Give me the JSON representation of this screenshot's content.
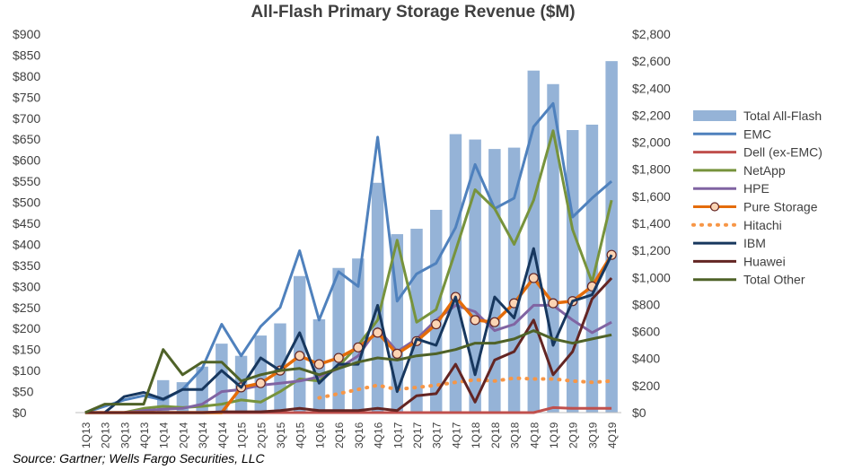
{
  "chart_data": {
    "type": "bar",
    "title": "All-Flash Primary Storage Revenue ($M)",
    "source": "Source: Gartner; Wells Fargo Securities, LLC",
    "categories": [
      "1Q13",
      "2Q13",
      "3Q13",
      "4Q13",
      "1Q14",
      "2Q14",
      "3Q14",
      "4Q14",
      "1Q15",
      "2Q15",
      "3Q15",
      "4Q15",
      "1Q16",
      "2Q16",
      "3Q16",
      "4Q16",
      "1Q17",
      "2Q17",
      "3Q17",
      "4Q17",
      "1Q18",
      "2Q18",
      "3Q18",
      "4Q18",
      "1Q19",
      "2Q19",
      "3Q19",
      "4Q19"
    ],
    "y_left": {
      "min": 0,
      "max": 900,
      "step": 50,
      "tick_labels": [
        "$0",
        "$50",
        "$100",
        "$150",
        "$200",
        "$250",
        "$300",
        "$350",
        "$400",
        "$450",
        "$500",
        "$550",
        "$600",
        "$650",
        "$700",
        "$750",
        "$800",
        "$850",
        "$900"
      ]
    },
    "y_right": {
      "min": 0,
      "max": 2800,
      "step": 200,
      "tick_labels": [
        "$0",
        "$200",
        "$400",
        "$600",
        "$800",
        "$1,000",
        "$1,200",
        "$1,400",
        "$1,600",
        "$1,800",
        "$2,000",
        "$2,200",
        "$2,400",
        "$2,600",
        "$2,800"
      ]
    },
    "legend_position": "right",
    "grid": false,
    "bar_series": {
      "name": "Total All-Flash",
      "axis": "right",
      "color": "#95b3d7",
      "values": [
        0,
        0,
        0,
        0,
        240,
        225,
        340,
        510,
        420,
        570,
        660,
        1010,
        690,
        1070,
        1140,
        1700,
        1320,
        1360,
        1500,
        2060,
        2020,
        1950,
        1960,
        2530,
        2430,
        2090,
        2130,
        2600
      ]
    },
    "series": [
      {
        "name": "EMC",
        "color": "#4f81bd",
        "style": "line",
        "values": [
          0,
          15,
          30,
          40,
          30,
          55,
          105,
          210,
          135,
          205,
          250,
          385,
          220,
          335,
          300,
          655,
          265,
          330,
          355,
          440,
          590,
          485,
          510,
          680,
          735,
          465,
          510,
          550
        ]
      },
      {
        "name": "Dell (ex-EMC)",
        "color": "#c0504d",
        "style": "line",
        "values": [
          0,
          0,
          0,
          0,
          0,
          0,
          0,
          0,
          0,
          0,
          0,
          0,
          0,
          0,
          0,
          0,
          0,
          0,
          0,
          0,
          0,
          0,
          0,
          0,
          12,
          10,
          10,
          10
        ]
      },
      {
        "name": "NetApp",
        "color": "#77933c",
        "style": "line",
        "values": [
          0,
          0,
          0,
          10,
          15,
          12,
          15,
          20,
          30,
          25,
          50,
          80,
          75,
          110,
          160,
          220,
          410,
          215,
          245,
          385,
          530,
          485,
          400,
          505,
          670,
          435,
          310,
          505
        ]
      },
      {
        "name": "HPE",
        "color": "#8064a2",
        "style": "line",
        "values": [
          0,
          0,
          0,
          5,
          8,
          10,
          20,
          50,
          55,
          65,
          70,
          75,
          85,
          105,
          135,
          200,
          145,
          175,
          220,
          255,
          240,
          195,
          210,
          255,
          255,
          220,
          190,
          215
        ]
      },
      {
        "name": "Pure Storage",
        "color": "#e46c0a",
        "style": "markerline",
        "values": [
          0,
          0,
          0,
          0,
          0,
          0,
          0,
          0,
          60,
          70,
          100,
          135,
          115,
          130,
          155,
          190,
          140,
          170,
          210,
          275,
          220,
          215,
          260,
          320,
          260,
          265,
          300,
          375
        ]
      },
      {
        "name": "Hitachi",
        "color": "#f79646",
        "style": "dotted",
        "values": [
          0,
          0,
          0,
          0,
          0,
          0,
          0,
          0,
          0,
          0,
          0,
          0,
          35,
          45,
          55,
          65,
          55,
          60,
          65,
          72,
          78,
          75,
          82,
          80,
          80,
          75,
          72,
          75
        ]
      },
      {
        "name": "IBM",
        "color": "#17375e",
        "style": "line",
        "values": [
          0,
          0,
          38,
          48,
          32,
          55,
          55,
          100,
          60,
          130,
          100,
          190,
          70,
          115,
          115,
          255,
          50,
          175,
          160,
          275,
          90,
          275,
          225,
          390,
          160,
          265,
          280,
          375
        ]
      },
      {
        "name": "Huawei",
        "color": "#632523",
        "style": "line",
        "values": [
          0,
          0,
          0,
          0,
          0,
          0,
          0,
          2,
          2,
          2,
          5,
          10,
          5,
          5,
          5,
          10,
          5,
          40,
          45,
          115,
          25,
          125,
          145,
          220,
          90,
          145,
          270,
          320
        ]
      },
      {
        "name": "Total Other",
        "color": "#4f6228",
        "style": "line",
        "values": [
          0,
          20,
          20,
          20,
          150,
          90,
          120,
          120,
          75,
          90,
          100,
          105,
          90,
          105,
          120,
          130,
          125,
          135,
          140,
          150,
          165,
          165,
          175,
          195,
          175,
          165,
          175,
          185
        ]
      }
    ]
  }
}
